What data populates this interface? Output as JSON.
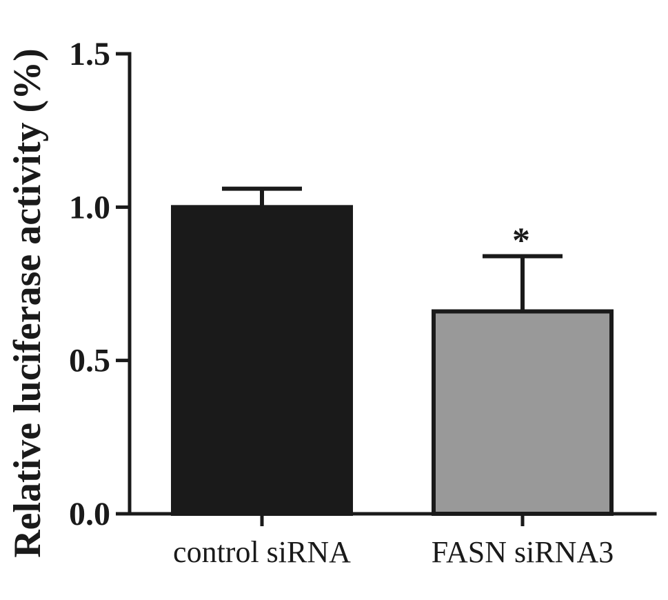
{
  "chart_data": {
    "type": "bar",
    "title": "",
    "xlabel": "",
    "ylabel": "Relative luciferase activity (%)",
    "ylim": [
      0,
      1.5
    ],
    "yticks": [
      0.0,
      0.5,
      1.0,
      1.5
    ],
    "ytick_labels": [
      "0.0",
      "0.5",
      "1.0",
      "1.5"
    ],
    "grid": false,
    "categories": [
      "control siRNA",
      "FASN siRNA3"
    ],
    "values": [
      1.0,
      0.66
    ],
    "errors": [
      0.06,
      0.18
    ],
    "bar_colors": [
      "#1a1a1a",
      "#999999"
    ],
    "annotations": [
      "",
      "*"
    ]
  }
}
